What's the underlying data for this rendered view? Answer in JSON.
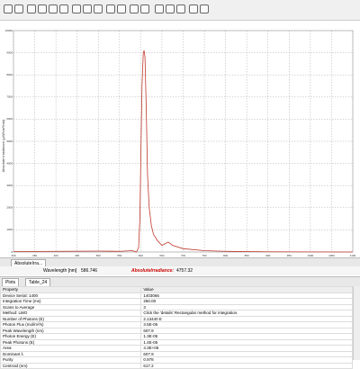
{
  "chart_data": {
    "type": "line",
    "x_label": "Wavelength (nm)",
    "y_label": "Absolute Irradiance (µW/cm²/nm)",
    "x": [
      300,
      400,
      500,
      550,
      580,
      590,
      595,
      598,
      600,
      603,
      606,
      608,
      610,
      613,
      616,
      620,
      625,
      630,
      640,
      650,
      660,
      665,
      675,
      700,
      750,
      800,
      900,
      1000,
      1100
    ],
    "series": [
      {
        "name": "AbsoluteIrradiance",
        "color": "#c0392b",
        "values": [
          20,
          30,
          40,
          30,
          60,
          0,
          200,
          1500,
          4000,
          7500,
          9000,
          9100,
          8800,
          6500,
          3500,
          2000,
          1200,
          800,
          500,
          300,
          400,
          450,
          300,
          150,
          60,
          30,
          10,
          5,
          0
        ]
      }
    ],
    "xlim": [
      300,
      1100
    ],
    "xticks": [
      300,
      350,
      400,
      450,
      500,
      550,
      600,
      650,
      700,
      750,
      800,
      850,
      900,
      950,
      1000,
      1050,
      1100
    ],
    "ylim": [
      0,
      10000
    ],
    "yticks": [
      0,
      1000,
      2000,
      3000,
      4000,
      5000,
      6000,
      7000,
      8000,
      9000,
      10000
    ],
    "grid": true
  },
  "tabs": {
    "plot_tab": "AbsoluteIrra...",
    "bottom_tabs": [
      "Plots",
      "Table_24"
    ]
  },
  "status": {
    "wavelength_label": "Wavelength [nm]",
    "wavelength_value": "586.746",
    "irradiance_label": "AbsoluteIrradiance:",
    "irradiance_value": "4757.32"
  },
  "table": {
    "header": [
      "Property",
      "Value"
    ],
    "rows": [
      [
        "Device Serial: 1400",
        "1403066"
      ],
      [
        "Integration Time (ms)",
        "250.00"
      ],
      [
        "Scans to Average",
        "3"
      ],
      [
        "Method: LWO",
        "Click the 'details' Rectangular method for integration."
      ],
      [
        "Number of Photons (E)",
        "2.13440 E"
      ],
      [
        "Photon Flux (mol/m²/s)",
        "3.5E-05"
      ],
      [
        "Peak Wavelength (nm)",
        "607.9"
      ],
      [
        "Photon Energy (E)",
        "1.3E-05"
      ],
      [
        "Peak Photons (E)",
        "1.4E-05"
      ],
      [
        "Area",
        "4.3E+05"
      ],
      [
        "Dominant λ",
        "607.9"
      ],
      [
        "Purity",
        "0.978"
      ],
      [
        "Centroid (nm)",
        "617.2"
      ]
    ]
  }
}
